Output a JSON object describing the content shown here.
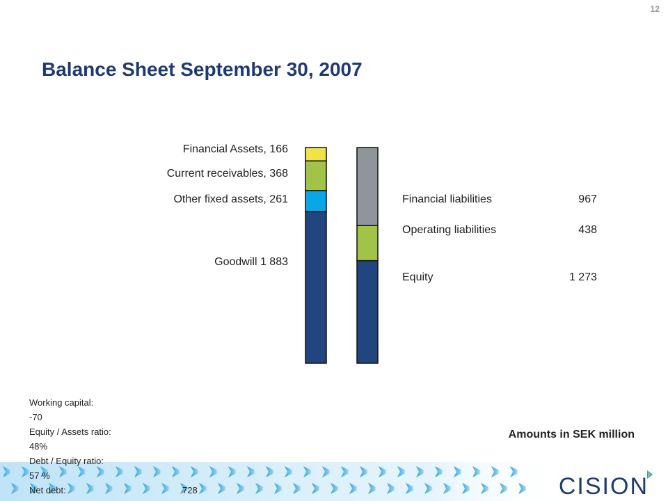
{
  "page": {
    "number": "12"
  },
  "title": "Balance Sheet September 30, 2007",
  "note": "Amounts in SEK million",
  "chart_data": {
    "type": "bar",
    "stacked": true,
    "categories": [
      "",
      ""
    ],
    "series": [
      {
        "name": "Goodwill",
        "label": "Goodwill 1 883",
        "stack": "assets",
        "value": 1883,
        "color": "#21457f"
      },
      {
        "name": "Other fixed assets",
        "label": "Other fixed assets, 261",
        "stack": "assets",
        "value": 261,
        "color": "#0aa6e6"
      },
      {
        "name": "Current receivables",
        "label": "Current receivables,  368",
        "stack": "assets",
        "value": 368,
        "color": "#a0c348"
      },
      {
        "name": "Financial Assets",
        "label": "Financial Assets, 166",
        "stack": "assets",
        "value": 166,
        "color": "#f2e24a"
      },
      {
        "name": "Equity",
        "label": "Equity",
        "display": "1 273",
        "stack": "liabilities",
        "value": 1273,
        "color": "#21457f"
      },
      {
        "name": "Operating liabilities",
        "label": "Operating liabilities",
        "display": "438",
        "stack": "liabilities",
        "value": 438,
        "color": "#a0c348"
      },
      {
        "name": "Financial liabilities",
        "label": "Financial liabilities",
        "display": "967",
        "stack": "liabilities",
        "value": 967,
        "color": "#8f959a"
      }
    ],
    "ylim": [
      0,
      2678
    ],
    "grid": false
  },
  "kpis": {
    "working_capital_label": "Working capital:",
    "working_capital_value": "-70",
    "equity_assets_label": "Equity / Assets ratio:",
    "equity_assets_value": "48%",
    "debt_equity_label": "Debt / Equity ratio:",
    "debt_equity_value": "57 %",
    "net_debt_label": "Net debt:",
    "net_debt_value": "728"
  },
  "logo": {
    "text": "CISION"
  },
  "colors": {
    "title": "#1f3a70",
    "banner_light": "#cfeaf8",
    "banner_arrow": "#2f9fd8"
  }
}
